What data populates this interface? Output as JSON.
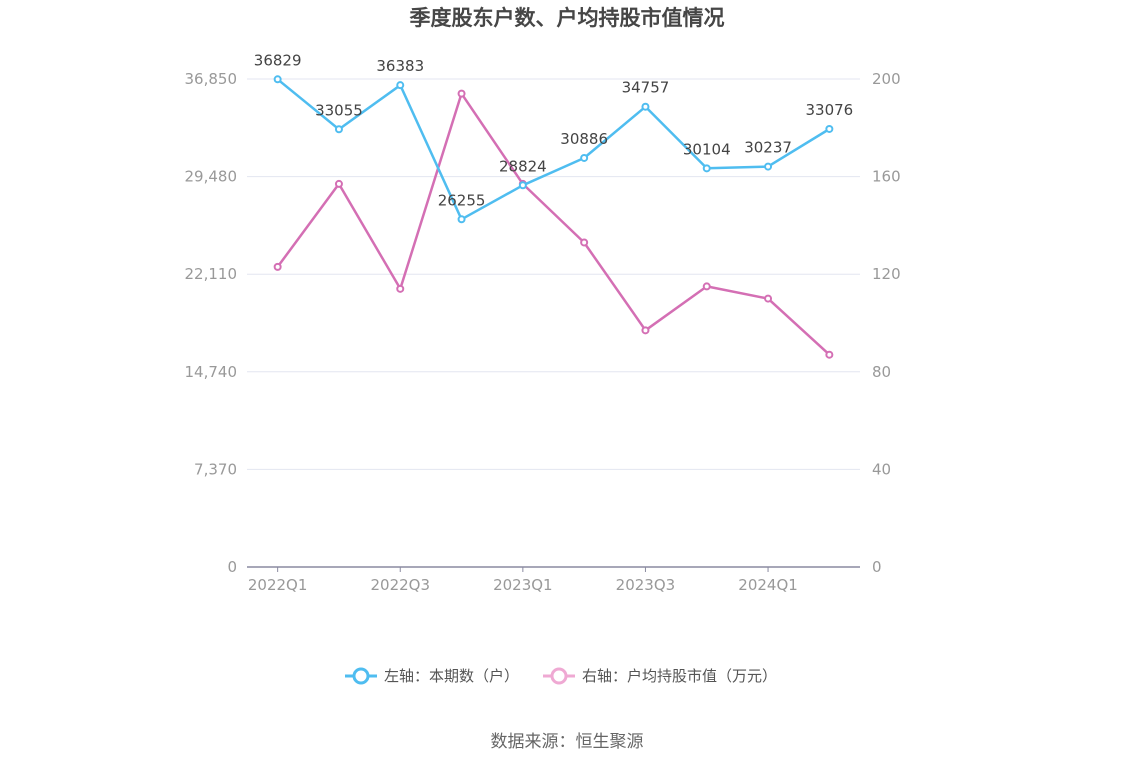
{
  "title": "季度股东户数、户均持股市值情况",
  "source": "数据来源：恒生聚源",
  "colors": {
    "left": "#4fbdf0",
    "right": "#d46fb4",
    "legend_right": "#efa9d3",
    "grid": "#e3e6f0",
    "axis": "#8a8aa0"
  },
  "chart_data": {
    "type": "line",
    "categories": [
      "2022Q1",
      "2022Q2",
      "2022Q3",
      "2022Q4",
      "2023Q1",
      "2023Q2",
      "2023Q3",
      "2023Q4",
      "2024Q1",
      "2024Q2"
    ],
    "x_tick_labels": [
      "2022Q1",
      "",
      "2022Q3",
      "",
      "2023Q1",
      "",
      "2023Q3",
      "",
      "2024Q1",
      ""
    ],
    "left_axis": {
      "min": 0,
      "max": 36850,
      "ticks": [
        0,
        7370,
        14740,
        22110,
        29480,
        36850
      ],
      "tick_labels": [
        "0",
        "7,370",
        "14,740",
        "22,110",
        "29,480",
        "36,850"
      ]
    },
    "right_axis": {
      "min": 0,
      "max": 200,
      "ticks": [
        0,
        40,
        80,
        120,
        160,
        200
      ],
      "tick_labels": [
        "0",
        "40",
        "80",
        "120",
        "160",
        "200"
      ]
    },
    "series": [
      {
        "name": "左轴：本期数（户）",
        "axis": "left",
        "values": [
          36829,
          33055,
          36383,
          26255,
          28824,
          30886,
          34757,
          30104,
          30237,
          33076
        ],
        "labels": [
          "36829",
          "33055",
          "36383",
          "26255",
          "28824",
          "30886",
          "34757",
          "30104",
          "30237",
          "33076"
        ]
      },
      {
        "name": "右轴：户均持股市值（万元）",
        "axis": "right",
        "values": [
          123,
          157,
          114,
          194,
          157,
          133,
          97,
          115,
          110,
          87
        ]
      }
    ],
    "grid": true,
    "legend_position": "bottom-center"
  }
}
